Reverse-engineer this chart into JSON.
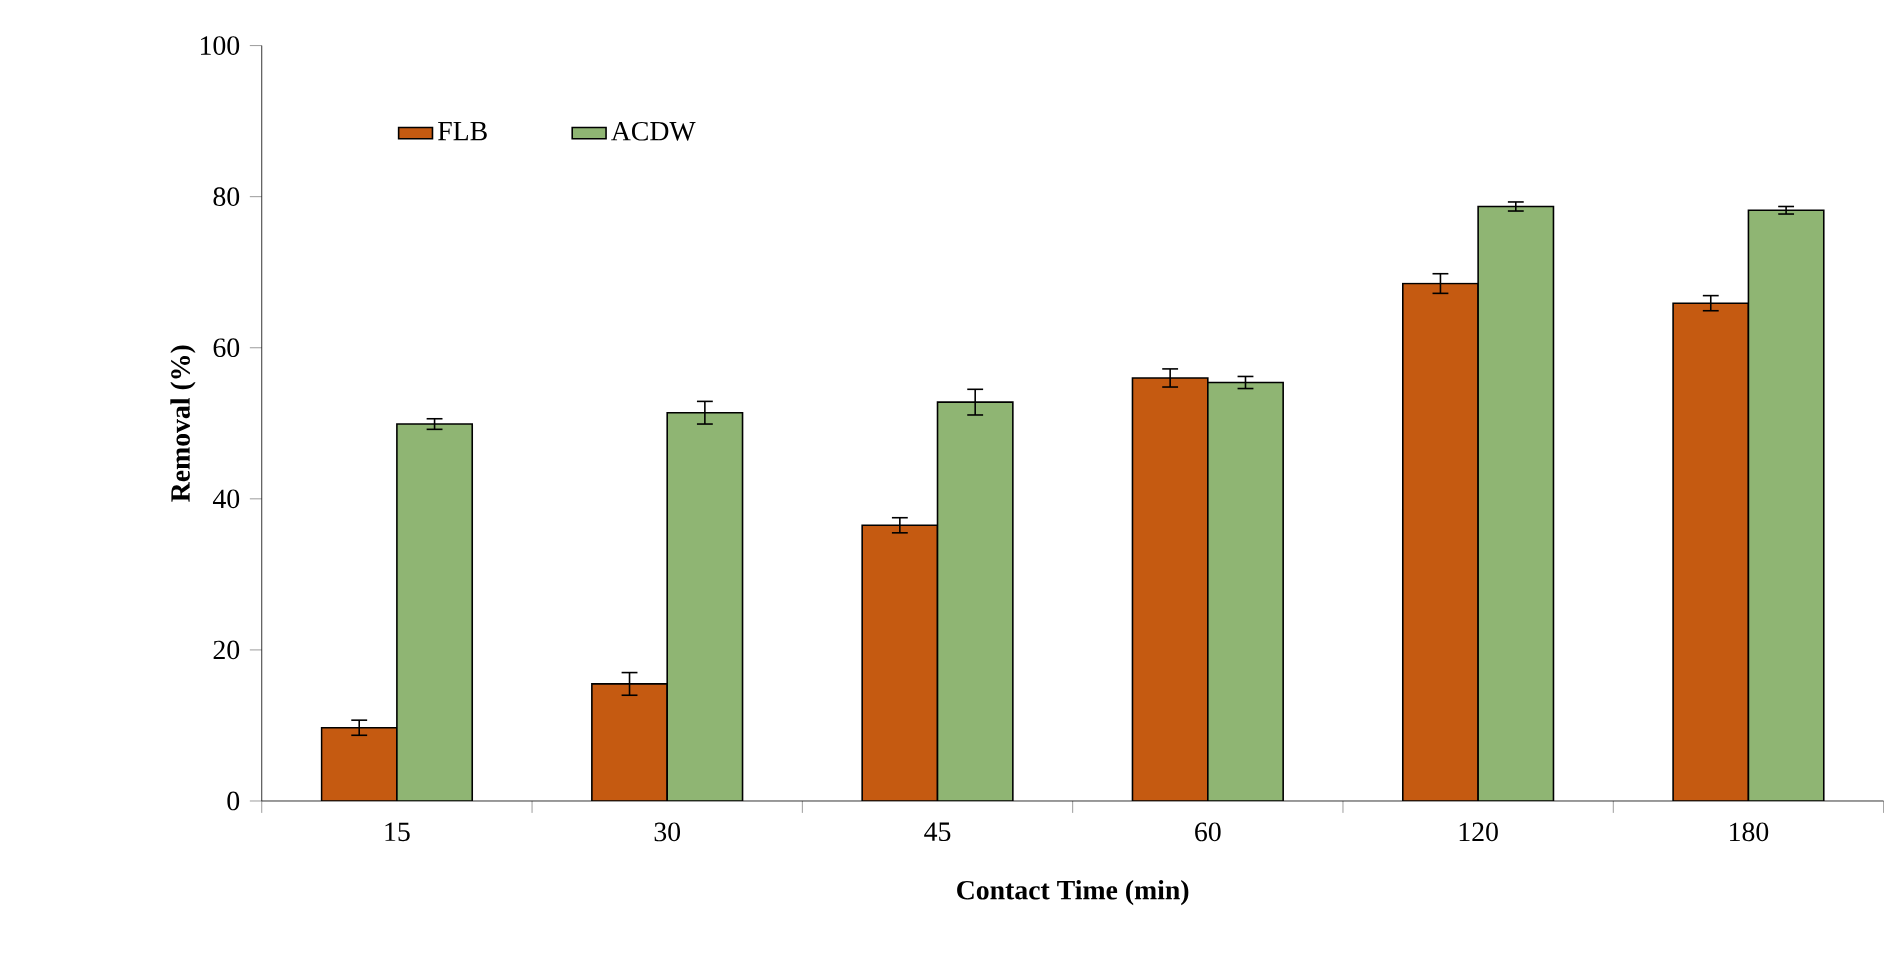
{
  "chart_data": {
    "type": "bar",
    "xlabel": "Contact Time (min)",
    "ylabel": "Removal (%)",
    "categories": [
      "15",
      "30",
      "45",
      "60",
      "120",
      "180"
    ],
    "series": [
      {
        "name": "FLB",
        "color": "#c55a11",
        "values": [
          9.7,
          15.5,
          36.5,
          56,
          68.5,
          65.9
        ],
        "errors": [
          1,
          1.5,
          1,
          1.2,
          1.3,
          1
        ]
      },
      {
        "name": "ACDW",
        "color": "#8fb573",
        "values": [
          49.9,
          51.4,
          52.8,
          55.4,
          78.7,
          78.2
        ],
        "errors": [
          0.7,
          1.5,
          1.7,
          0.8,
          0.6,
          0.5
        ]
      }
    ],
    "ylim": [
      0,
      100
    ],
    "yticks": [
      0,
      20,
      40,
      60,
      80,
      100
    ],
    "legend": "top left",
    "grid": false
  }
}
